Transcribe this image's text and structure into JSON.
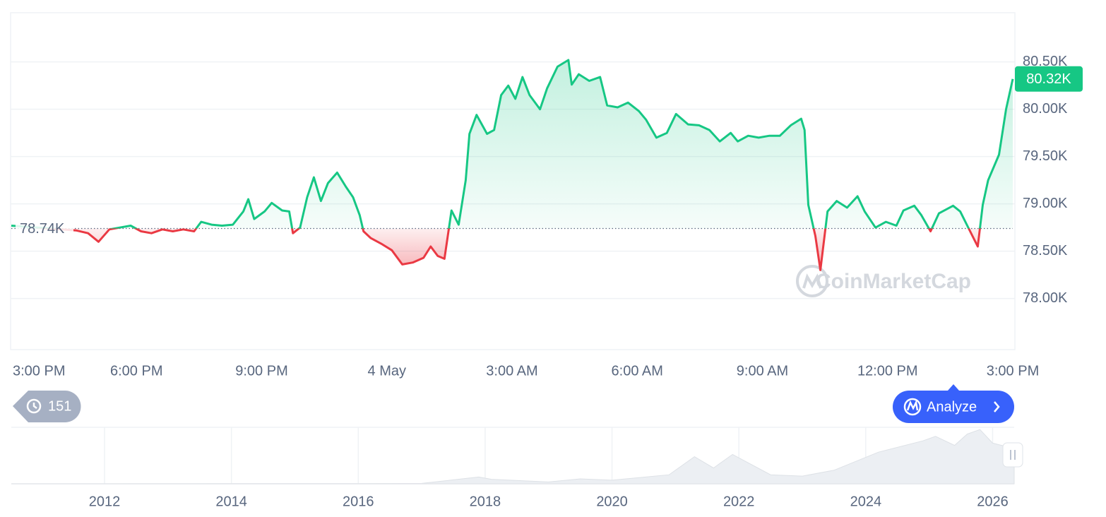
{
  "chart_data": {
    "type": "line",
    "x": [
      0,
      1.55,
      1.84,
      2.09,
      2.35,
      2.6,
      2.86,
      3.11,
      3.36,
      3.62,
      3.87,
      4.12,
      4.38,
      4.55,
      4.8,
      5.05,
      5.31,
      5.56,
      5.68,
      5.82,
      6.07,
      6.24,
      6.49,
      6.66,
      6.75,
      6.92,
      7.09,
      7.25,
      7.42,
      7.59,
      7.81,
      8.02,
      8.19,
      8.35,
      8.44,
      8.61,
      8.86,
      9.12,
      9.37,
      9.62,
      9.88,
      10.05,
      10.22,
      10.38,
      10.55,
      10.72,
      10.89,
      10.98,
      11.15,
      11.4,
      11.57,
      11.74,
      11.91,
      12.08,
      12.25,
      12.42,
      12.67,
      12.84,
      13.09,
      13.35,
      13.43,
      13.6,
      13.85,
      14.11,
      14.28,
      14.53,
      14.78,
      15.04,
      15.21,
      15.46,
      15.71,
      15.93,
      16.22,
      16.48,
      16.73,
      16.98,
      17.24,
      17.41,
      17.66,
      17.91,
      18.17,
      18.42,
      18.68,
      18.93,
      19.01,
      19.1,
      19.27,
      19.39,
      19.56,
      19.78,
      20.03,
      20.28,
      20.45,
      20.71,
      20.96,
      21.21,
      21.38,
      21.64,
      21.81,
      22.03,
      22.23,
      22.57,
      22.74,
      22.91,
      23.16,
      23.28,
      23.41,
      23.67,
      23.84,
      24
    ],
    "values": [
      78770,
      78720,
      78690,
      78600,
      78730,
      78750,
      78770,
      78710,
      78690,
      78730,
      78710,
      78730,
      78710,
      78810,
      78780,
      78770,
      78780,
      78920,
      79050,
      78840,
      78920,
      79010,
      78930,
      78920,
      78690,
      78750,
      79070,
      79280,
      79030,
      79220,
      79330,
      79180,
      79070,
      78880,
      78710,
      78640,
      78580,
      78510,
      78360,
      78380,
      78430,
      78550,
      78450,
      78420,
      78930,
      78780,
      79250,
      79740,
      79940,
      79740,
      79780,
      80150,
      80250,
      80110,
      80340,
      80150,
      80000,
      80220,
      80450,
      80520,
      80260,
      80370,
      80300,
      80340,
      80040,
      80020,
      80070,
      79980,
      79890,
      79700,
      79750,
      79950,
      79840,
      79830,
      79780,
      79660,
      79750,
      79660,
      79720,
      79700,
      79720,
      79720,
      79830,
      79900,
      79780,
      78990,
      78660,
      78300,
      78920,
      79030,
      78960,
      79080,
      78920,
      78750,
      78810,
      78770,
      78930,
      78980,
      78880,
      78710,
      78900,
      78980,
      78920,
      78770,
      78550,
      78990,
      79250,
      79520,
      80000,
      80320
    ],
    "color_up": "#16c784",
    "color_down": "#ea3943",
    "xlim": [
      0,
      24
    ],
    "xticks": [
      {
        "value": 0,
        "label": "3:00 PM"
      },
      {
        "value": 3,
        "label": "6:00 PM"
      },
      {
        "value": 6,
        "label": "9:00 PM"
      },
      {
        "value": 9,
        "label": "4 May"
      },
      {
        "value": 12,
        "label": "3:00 AM"
      },
      {
        "value": 15,
        "label": "6:00 AM"
      },
      {
        "value": 18,
        "label": "9:00 AM"
      },
      {
        "value": 21,
        "label": "12:00 PM"
      },
      {
        "value": 24,
        "label": "3:00 PM"
      }
    ],
    "ylim": [
      77460,
      81020
    ],
    "yticks": [
      {
        "value": 78000,
        "label": "78.00K"
      },
      {
        "value": 78500,
        "label": "78.50K"
      },
      {
        "value": 79000,
        "label": "79.00K"
      },
      {
        "value": 79500,
        "label": "79.50K"
      },
      {
        "value": 80000,
        "label": "80.00K"
      },
      {
        "value": 80500,
        "label": "80.50K"
      }
    ],
    "grid": true,
    "baseline": {
      "value": 78740,
      "label": "78.74K"
    },
    "last_price": {
      "value": 80320,
      "label": "80.32K"
    },
    "watermark": "CoinMarketCap",
    "badge": "151",
    "button": "Analyze",
    "navigator": {
      "x": [
        2010.53,
        2013.0,
        2014.0,
        2016.0,
        2017.0,
        2017.9,
        2018.1,
        2019.0,
        2019.5,
        2020.0,
        2020.9,
        2021.3,
        2021.6,
        2021.9,
        2022.5,
        2023.0,
        2023.5,
        2024.2,
        2024.9,
        2025.1,
        2025.4,
        2025.6,
        2025.8,
        2026.0,
        2026.34
      ],
      "values": [
        0,
        200,
        500,
        400,
        1000,
        15000,
        10000,
        4000,
        11000,
        8000,
        20000,
        60000,
        35000,
        65000,
        20000,
        17000,
        30000,
        70000,
        95000,
        105000,
        85000,
        110000,
        120000,
        90000,
        78000
      ],
      "xlim": [
        2010.53,
        2026.34
      ],
      "ylim": [
        0,
        125000
      ],
      "xticks": [
        2012,
        2014,
        2016,
        2018,
        2020,
        2022,
        2024,
        2026
      ]
    }
  }
}
